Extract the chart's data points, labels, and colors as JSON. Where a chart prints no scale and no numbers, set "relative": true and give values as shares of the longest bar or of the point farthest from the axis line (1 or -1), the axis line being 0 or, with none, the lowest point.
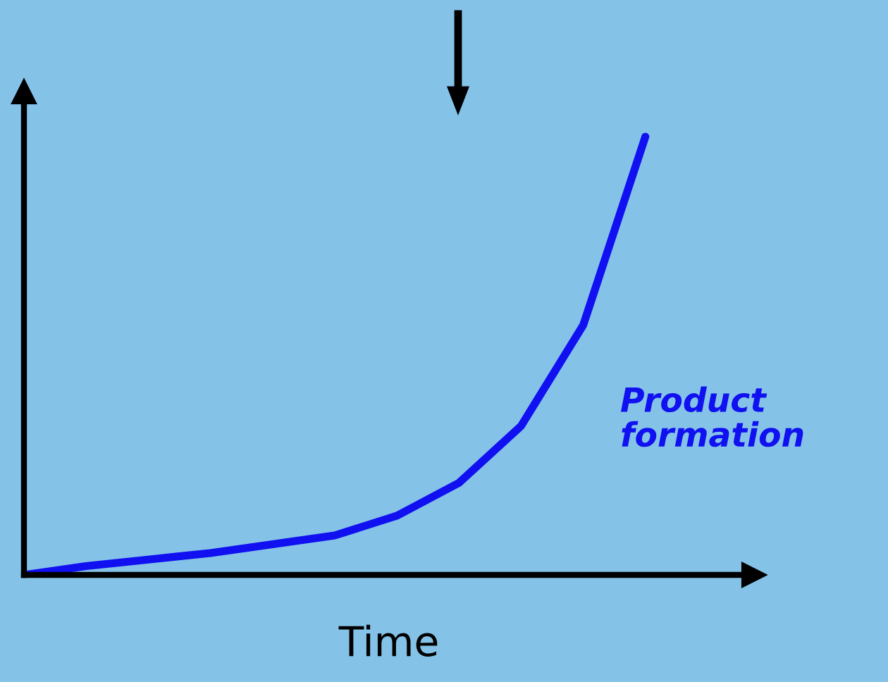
{
  "chart_data": {
    "type": "line",
    "relative": true,
    "xlabel": "Time",
    "categories": [
      null,
      null,
      null,
      null,
      null,
      null,
      null,
      null,
      null,
      null,
      null
    ],
    "series": [
      {
        "color": "#1010f0",
        "values": [
          0,
          0.02,
          0.035,
          0.05,
          0.07,
          0.09,
          0.135,
          0.21,
          0.34,
          0.57,
          1
        ]
      }
    ],
    "annotations": [
      "Product\nformation"
    ],
    "grid": false,
    "legend": false,
    "marker": "none",
    "line_style": "solid"
  }
}
